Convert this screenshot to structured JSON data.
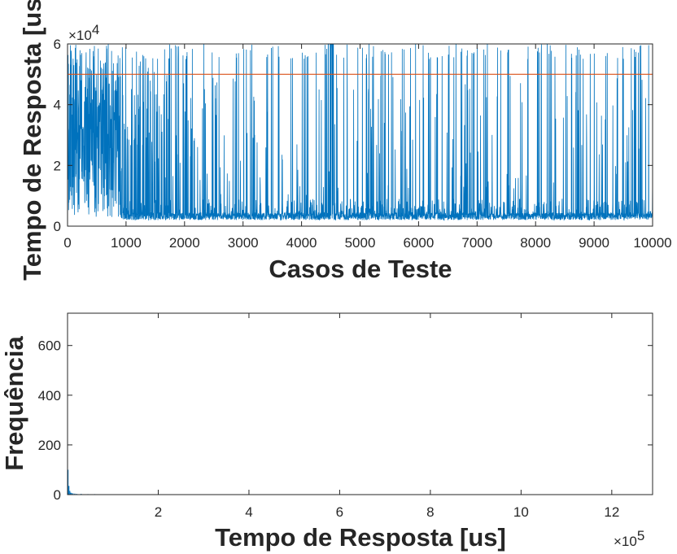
{
  "chart_data": [
    {
      "type": "line",
      "xlabel": "Casos de Teste",
      "ylabel": "Tempo de Resposta [us]",
      "xlim": [
        0,
        10000
      ],
      "ylim": [
        0,
        60000
      ],
      "xticks": [
        0,
        1000,
        2000,
        3000,
        4000,
        5000,
        6000,
        7000,
        8000,
        9000,
        10000
      ],
      "xtick_labels": [
        "0",
        "1000",
        "2000",
        "3000",
        "4000",
        "5000",
        "6000",
        "7000",
        "8000",
        "9000",
        "10000"
      ],
      "yticks": [
        0,
        20000,
        40000,
        60000
      ],
      "ytick_labels": [
        "0",
        "2",
        "4",
        "6"
      ],
      "y_exponent": "4",
      "exponent_base": "×10",
      "grid": false,
      "series": [
        {
          "color": "#0072BD",
          "description_points": [
            [
              0,
              8000
            ],
            [
              50,
              60000
            ],
            [
              150,
              12000
            ],
            [
              250,
              60000
            ],
            [
              400,
              6000
            ],
            [
              500,
              60000
            ],
            [
              650,
              20000
            ],
            [
              800,
              45000
            ],
            [
              900,
              3000
            ],
            [
              1000,
              35000
            ],
            [
              1200,
              4000
            ],
            [
              1400,
              60000
            ],
            [
              1600,
              3000
            ],
            [
              2000,
              3500
            ],
            [
              3000,
              3500
            ],
            [
              4000,
              3500
            ],
            [
              4500,
              60000
            ],
            [
              5000,
              3000
            ],
            [
              6000,
              3000
            ],
            [
              7000,
              3000
            ],
            [
              8000,
              3000
            ],
            [
              9000,
              3000
            ],
            [
              10000,
              3500
            ]
          ],
          "baseline_approx": 3000
        },
        {
          "color": "#D95319",
          "x": [
            0,
            10000
          ],
          "values": [
            50000,
            50000
          ]
        }
      ]
    },
    {
      "type": "bar",
      "xlabel": "Tempo de Resposta [us]",
      "ylabel": "Frequência",
      "xlim": [
        0,
        1290000
      ],
      "ylim": [
        0,
        730
      ],
      "xticks": [
        200000,
        400000,
        600000,
        800000,
        1000000,
        1200000
      ],
      "xtick_labels": [
        "2",
        "4",
        "6",
        "8",
        "10",
        "12"
      ],
      "yticks": [
        0,
        200,
        400,
        600
      ],
      "ytick_labels": [
        "0",
        "200",
        "400",
        "600"
      ],
      "x_exponent": "5",
      "exponent_base": "×10",
      "grid": false,
      "series": [
        {
          "color": "#0072BD",
          "bins_x": [
            1000,
            3000,
            5000,
            7000,
            9000,
            12000,
            16000,
            20000,
            30000,
            45000,
            60000,
            80000,
            110000
          ],
          "values": [
            100,
            35,
            15,
            8,
            6,
            5,
            4,
            3,
            3,
            2,
            2,
            1,
            1
          ]
        }
      ]
    }
  ]
}
